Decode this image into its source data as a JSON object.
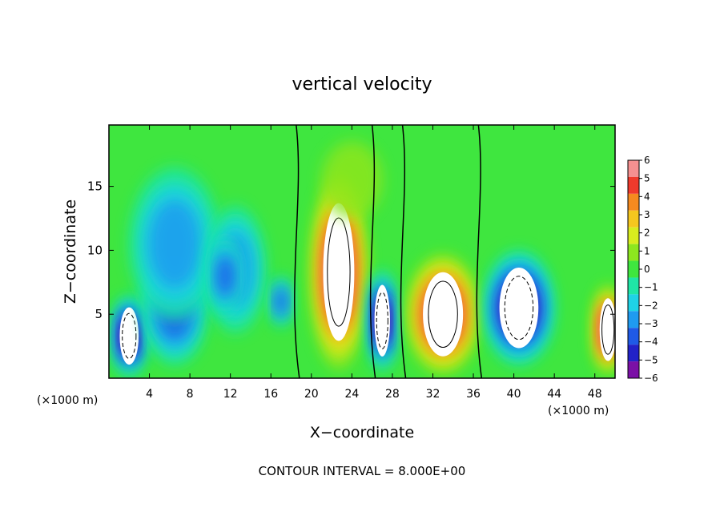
{
  "chart_data": {
    "type": "heatmap",
    "title": "vertical velocity",
    "xlabel": "X−coordinate",
    "ylabel": "Z−coordinate",
    "x_unit_left": "(×1000 m)",
    "x_unit_right": "(×1000 m)",
    "xlim": [
      0,
      50
    ],
    "ylim": [
      0,
      19.8
    ],
    "x_ticks": [
      4,
      8,
      12,
      16,
      20,
      24,
      28,
      32,
      36,
      40,
      44,
      48
    ],
    "x_tick_labels": [
      "4",
      "8",
      "12",
      "16",
      "20",
      "24",
      "28",
      "32",
      "36",
      "40",
      "44",
      "48"
    ],
    "y_ticks": [
      5,
      10,
      15
    ],
    "y_tick_labels": [
      "5",
      "10",
      "15"
    ],
    "footer": "CONTOUR INTERVAL = 8.000E+00",
    "colorbar": {
      "levels": [
        -6,
        -5,
        -4,
        -3,
        -2,
        -1,
        0,
        1,
        2,
        3,
        4,
        5,
        6
      ],
      "labels": [
        "6",
        "5",
        "4",
        "3",
        "2",
        "1",
        "0",
        "−1",
        "−2",
        "−3",
        "−4",
        "−5",
        "−6"
      ],
      "colors": [
        "#7b10a6",
        "#2222c8",
        "#1f5ae6",
        "#1f9bf0",
        "#1fd3e6",
        "#1fe6a6",
        "#3fe63f",
        "#8de61f",
        "#d8ec1f",
        "#f5c71f",
        "#f58a1f",
        "#ef3a2c",
        "#f59090"
      ]
    },
    "background_color": "#3fe63f",
    "cells": [
      {
        "x": 2.0,
        "z": 3.3,
        "w": -6,
        "rx": 1.7,
        "rz": 3.2
      },
      {
        "x": 6.5,
        "z": 5.5,
        "w": -4,
        "rx": 3.2,
        "rz": 4.5
      },
      {
        "x": 6.5,
        "z": 10.5,
        "w": -3,
        "rx": 4.5,
        "rz": 6
      },
      {
        "x": 12.5,
        "z": 8.5,
        "w": -3,
        "rx": 3,
        "rz": 5
      },
      {
        "x": 11.5,
        "z": 8.0,
        "w": -4,
        "rx": 1.5,
        "rz": 3
      },
      {
        "x": 17.0,
        "z": 6.0,
        "w": -4,
        "rx": 1,
        "rz": 2
      },
      {
        "x": 22.7,
        "z": 8.3,
        "w": 6,
        "rx": 2.8,
        "rz": 7.7
      },
      {
        "x": 27.0,
        "z": 4.5,
        "w": -6,
        "rx": 1.4,
        "rz": 4
      },
      {
        "x": 33.0,
        "z": 5.0,
        "w": 6,
        "rx": 3.6,
        "rz": 4.7
      },
      {
        "x": 40.5,
        "z": 5.5,
        "w": -6,
        "rx": 3.5,
        "rz": 4.5
      },
      {
        "x": 49.3,
        "z": 3.8,
        "w": 6,
        "rx": 1.5,
        "rz": 3.5
      },
      {
        "x": 24.0,
        "z": 15.5,
        "w": 1,
        "rx": 3,
        "rz": 3
      }
    ]
  }
}
